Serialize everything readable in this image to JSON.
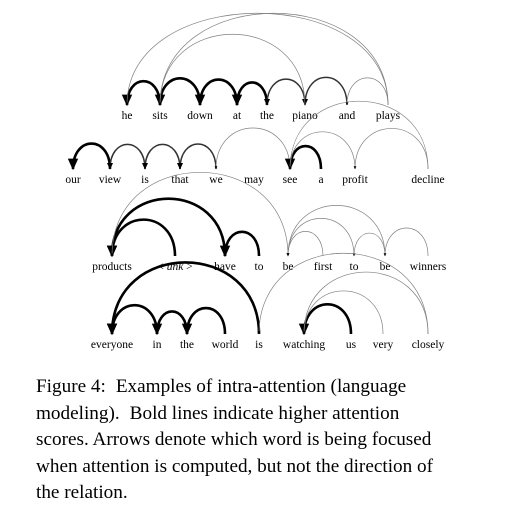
{
  "sentences": [
    {
      "words": [
        "he",
        "sits",
        "down",
        "at",
        "the",
        "piano",
        "and",
        "plays"
      ],
      "arcs": [
        {
          "from": 1,
          "to": 0,
          "weight": "bold"
        },
        {
          "from": 2,
          "to": 1,
          "weight": "bold"
        },
        {
          "from": 3,
          "to": 2,
          "weight": "bold"
        },
        {
          "from": 4,
          "to": 3,
          "weight": "bold"
        },
        {
          "from": 5,
          "to": 4,
          "weight": "medium"
        },
        {
          "from": 6,
          "to": 5,
          "weight": "medium"
        },
        {
          "from": 7,
          "to": 6,
          "weight": "thin"
        },
        {
          "from": 5,
          "to": 1,
          "weight": "thin"
        },
        {
          "from": 7,
          "to": 1,
          "weight": "thin"
        },
        {
          "from": 7,
          "to": 0,
          "weight": "thin"
        }
      ]
    },
    {
      "words": [
        "our",
        "view",
        "is",
        "that",
        "we",
        "may",
        "see",
        "a",
        "profit",
        "decline"
      ],
      "arcs": [
        {
          "from": 1,
          "to": 0,
          "weight": "bold"
        },
        {
          "from": 2,
          "to": 1,
          "weight": "medium"
        },
        {
          "from": 3,
          "to": 2,
          "weight": "medium"
        },
        {
          "from": 4,
          "to": 3,
          "weight": "medium"
        },
        {
          "from": 6,
          "to": 4,
          "weight": "thin"
        },
        {
          "from": 7,
          "to": 6,
          "weight": "bold"
        },
        {
          "from": 8,
          "to": 6,
          "weight": "thin"
        },
        {
          "from": 9,
          "to": 6,
          "weight": "thin"
        },
        {
          "from": 9,
          "to": 8,
          "weight": "thin"
        }
      ]
    },
    {
      "words": [
        "products",
        "< unk >",
        "have",
        "to",
        "be",
        "first",
        "to",
        "be",
        "winners"
      ],
      "arcs": [
        {
          "from": 1,
          "to": 0,
          "weight": "bold"
        },
        {
          "from": 2,
          "to": 0,
          "weight": "bold"
        },
        {
          "from": 3,
          "to": 2,
          "weight": "bold"
        },
        {
          "from": 4,
          "to": 0,
          "weight": "thin"
        },
        {
          "from": 5,
          "to": 4,
          "weight": "thin"
        },
        {
          "from": 6,
          "to": 4,
          "weight": "thin"
        },
        {
          "from": 7,
          "to": 4,
          "weight": "thin"
        },
        {
          "from": 7,
          "to": 6,
          "weight": "thin"
        },
        {
          "from": 8,
          "to": 7,
          "weight": "thin"
        }
      ]
    },
    {
      "words": [
        "everyone",
        "in",
        "the",
        "world",
        "is",
        "watching",
        "us",
        "very",
        "closely"
      ],
      "arcs": [
        {
          "from": 1,
          "to": 0,
          "weight": "bold"
        },
        {
          "from": 2,
          "to": 1,
          "weight": "bold"
        },
        {
          "from": 3,
          "to": 2,
          "weight": "bold"
        },
        {
          "from": 4,
          "to": 0,
          "weight": "bold"
        },
        {
          "from": 6,
          "to": 5,
          "weight": "bold"
        },
        {
          "from": 7,
          "to": 5,
          "weight": "thin"
        },
        {
          "from": 8,
          "to": 5,
          "weight": "thin"
        },
        {
          "from": 8,
          "to": 4,
          "weight": "thin"
        }
      ]
    }
  ],
  "caption": {
    "lines": [
      [
        "Figure 4:",
        "Examples of intra-attention (language"
      ],
      [
        "modeling).",
        "Bold lines indicate higher attention"
      ],
      [
        "scores. Arrows denote which word is being focused"
      ],
      [
        "when attention is computed, but not the direction of"
      ],
      [
        "the relation."
      ]
    ]
  }
}
